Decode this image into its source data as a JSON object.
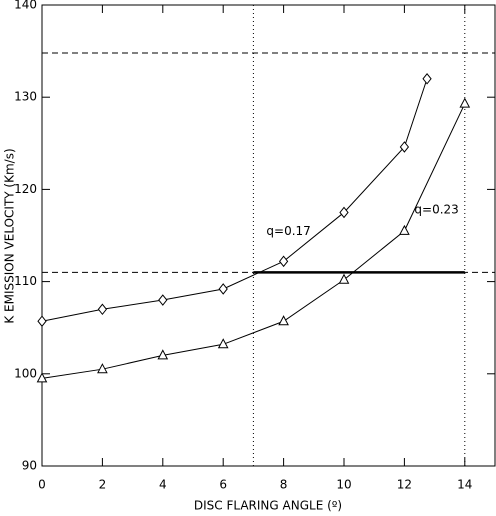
{
  "chart_data": {
    "type": "line",
    "x_label": "DISC FLARING ANGLE (º)",
    "y_label": "K EMISSION VELOCITY (Km/s)",
    "xlim": [
      0,
      15
    ],
    "ylim": [
      90,
      140
    ],
    "xticks": [
      0,
      2,
      4,
      6,
      8,
      10,
      12,
      14
    ],
    "yticks": [
      90,
      100,
      110,
      120,
      130,
      140
    ],
    "series": [
      {
        "name": "q=0.17",
        "color": "#000000",
        "marker": "diamond",
        "x": [
          0,
          2,
          4,
          6,
          8,
          10,
          12,
          12.75
        ],
        "values": [
          105.7,
          107,
          108,
          109.2,
          112.2,
          117.5,
          124.6,
          132
        ]
      },
      {
        "name": "q=0.23",
        "color": "#000000",
        "marker": "triangle",
        "x": [
          0,
          2,
          4,
          6,
          8,
          10,
          12,
          14
        ],
        "values": [
          99.5,
          100.5,
          102,
          103.2,
          105.7,
          110.2,
          115.5,
          129.3
        ]
      }
    ],
    "reference_lines": {
      "y": [
        134.8,
        111
      ],
      "x": [
        7,
        14
      ]
    },
    "highlight": {
      "x": [
        7,
        14
      ],
      "y": 111
    }
  }
}
